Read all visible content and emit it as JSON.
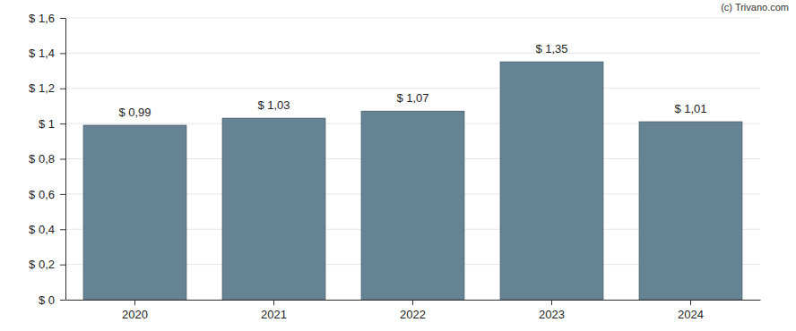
{
  "chart_data": {
    "type": "bar",
    "categories": [
      "2020",
      "2021",
      "2022",
      "2023",
      "2024"
    ],
    "values": [
      0.99,
      1.03,
      1.07,
      1.35,
      1.01
    ],
    "value_labels": [
      "$ 0,99",
      "$ 1,03",
      "$ 1,07",
      "$ 1,35",
      "$ 1,01"
    ],
    "data_labels": true,
    "color": "#668394",
    "ylim": [
      0,
      1.6
    ],
    "yticks": [
      {
        "value": 0,
        "label": "$ 0"
      },
      {
        "value": 0.2,
        "label": "$ 0,2"
      },
      {
        "value": 0.4,
        "label": "$ 0,4"
      },
      {
        "value": 0.6,
        "label": "$ 0,6"
      },
      {
        "value": 0.8,
        "label": "$ 0,8"
      },
      {
        "value": 1,
        "label": "$ 1"
      },
      {
        "value": 1.2,
        "label": "$ 1,2"
      },
      {
        "value": 1.4,
        "label": "$ 1,4"
      },
      {
        "value": 1.6,
        "label": "$ 1,6"
      }
    ],
    "grid": true,
    "annotations": [
      "(c) Trivano.com"
    ]
  }
}
